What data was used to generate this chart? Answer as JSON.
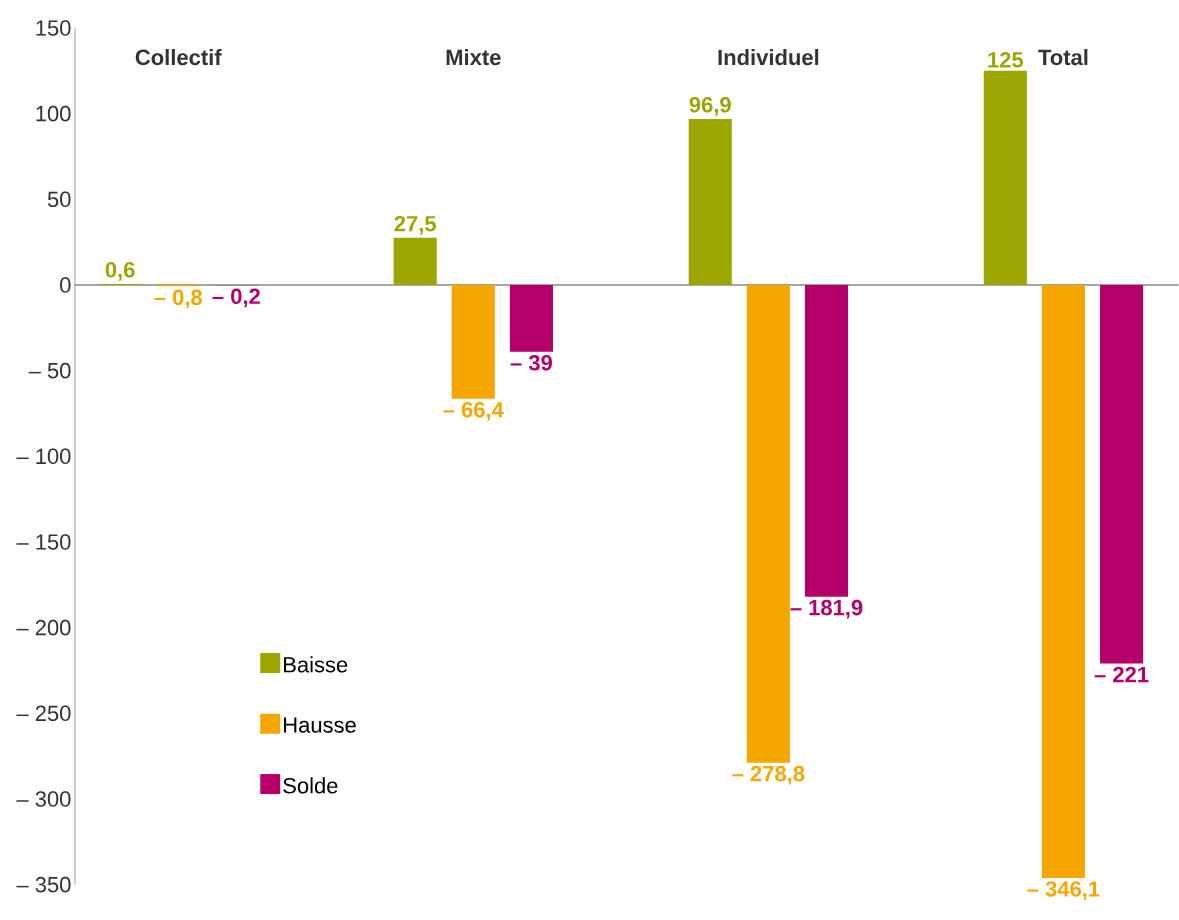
{
  "chart_data": {
    "type": "bar",
    "categories": [
      "Collectif",
      "Mixte",
      "Individuel",
      "Total"
    ],
    "series": [
      {
        "name": "Baisse",
        "color": "#9ba600",
        "values": [
          0.6,
          27.5,
          96.9,
          125
        ],
        "value_labels": [
          "0,6",
          "27,5",
          "96,9",
          "125"
        ]
      },
      {
        "name": "Hausse",
        "color": "#f5a700",
        "values": [
          -0.8,
          -66.4,
          -278.8,
          -346.1
        ],
        "value_labels": [
          "– 0,8",
          "– 66,4",
          "– 278,8",
          "– 346,1"
        ]
      },
      {
        "name": "Solde",
        "color": "#b5006a",
        "values": [
          -0.2,
          -39,
          -181.9,
          -221
        ],
        "value_labels": [
          "– 0,2",
          "– 39",
          "– 181,9",
          "– 221"
        ]
      }
    ],
    "ylim": [
      -350,
      150
    ],
    "yticks": [
      150,
      100,
      50,
      0,
      {
        "value": -50,
        "label": "– 50"
      },
      {
        "value": -100,
        "label": "– 100"
      },
      {
        "value": -150,
        "label": "– 150"
      },
      {
        "value": -200,
        "label": "– 200"
      },
      {
        "value": -250,
        "label": "– 250"
      },
      {
        "value": -300,
        "label": "– 300"
      },
      {
        "value": -350,
        "label": "– 350"
      }
    ],
    "legend": "bottom left"
  }
}
